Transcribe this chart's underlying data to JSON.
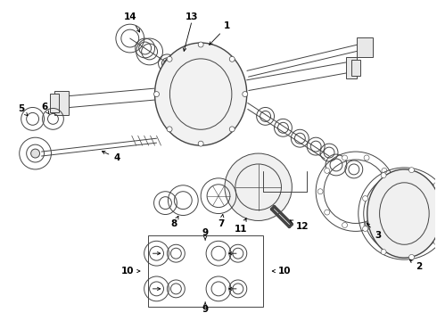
{
  "bg_color": "#ffffff",
  "line_color": "#444444",
  "fig_width": 4.9,
  "fig_height": 3.6,
  "dpi": 100,
  "font_size": 7.5
}
